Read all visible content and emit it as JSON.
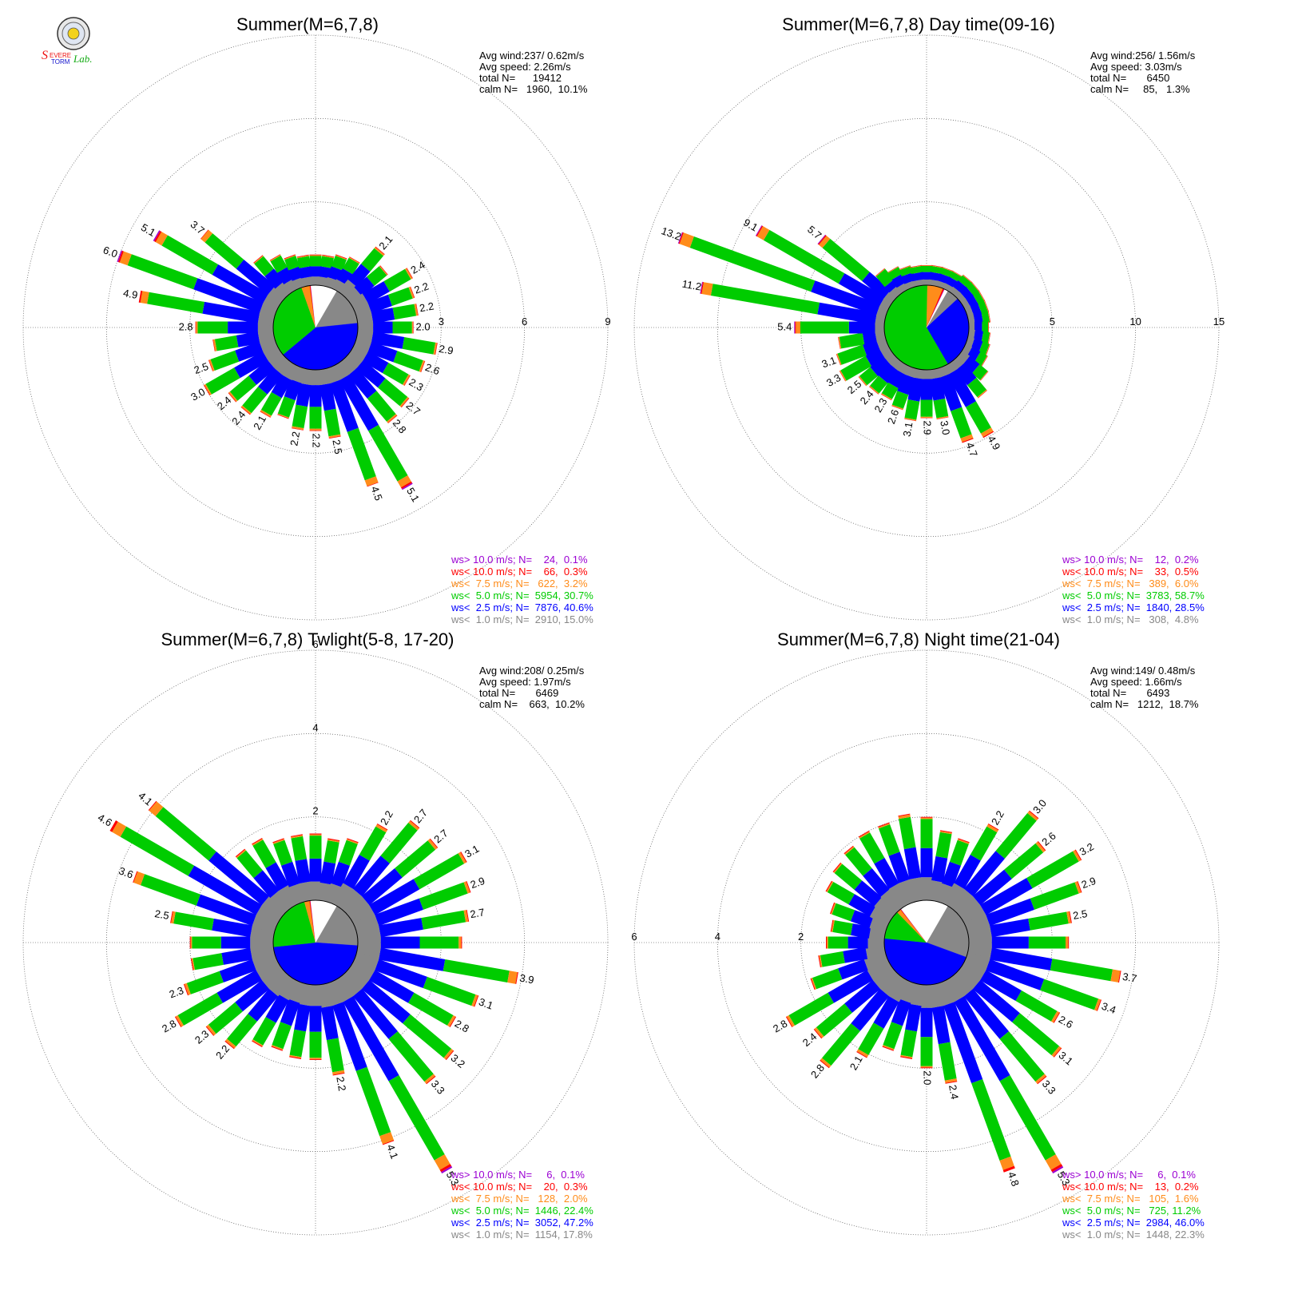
{
  "logo": {
    "text": "Severe Storm Lab."
  },
  "colors": {
    "ws_gt10": "#9b00d3",
    "ws_lt10": "#ff0000",
    "ws_lt7_5": "#ff8c1a",
    "ws_lt5": "#00cc00",
    "ws_lt2_5": "#0000ff",
    "ws_lt1": "#888888",
    "calm": "#ffffff"
  },
  "chart_data": [
    {
      "type": "wind_rose",
      "title": "Summer(M=6,7,8)",
      "stats": [
        "Avg wind:237/ 0.62m/s",
        "Avg speed: 2.26m/s",
        "total N=      19412",
        "calm N=   1960,  10.1%"
      ],
      "ring_values": [
        3,
        6,
        9
      ],
      "ring_labels": [
        "3",
        "6",
        "9"
      ],
      "ring_label_side": "right",
      "center_pie": [
        15.0,
        40.6,
        30.7,
        3.2,
        0.3,
        0.1,
        10.1
      ],
      "spokes": [
        {
          "dir": 0,
          "total": 1.1,
          "label": ""
        },
        {
          "dir": 10,
          "total": 1.1,
          "label": ""
        },
        {
          "dir": 20,
          "total": 1.2,
          "label": ""
        },
        {
          "dir": 30,
          "total": 1.3,
          "label": ""
        },
        {
          "dir": 40,
          "total": 2.1,
          "label": "2.1"
        },
        {
          "dir": 50,
          "total": 1.7,
          "label": ""
        },
        {
          "dir": 60,
          "total": 2.4,
          "label": "2.4"
        },
        {
          "dir": 70,
          "total": 2.2,
          "label": "2.2"
        },
        {
          "dir": 80,
          "total": 2.2,
          "label": "2.2"
        },
        {
          "dir": 90,
          "total": 2.0,
          "label": "2.0"
        },
        {
          "dir": 100,
          "total": 2.9,
          "label": "2.9"
        },
        {
          "dir": 110,
          "total": 2.6,
          "label": "2.6"
        },
        {
          "dir": 120,
          "total": 2.3,
          "label": "2.3"
        },
        {
          "dir": 130,
          "total": 2.7,
          "label": "2.7"
        },
        {
          "dir": 140,
          "total": 2.8,
          "label": "2.8"
        },
        {
          "dir": 150,
          "total": 5.1,
          "label": "5.1"
        },
        {
          "dir": 160,
          "total": 4.5,
          "label": "4.5"
        },
        {
          "dir": 170,
          "total": 2.5,
          "label": "2.5"
        },
        {
          "dir": 180,
          "total": 2.2,
          "label": "2.2"
        },
        {
          "dir": 190,
          "total": 2.2,
          "label": "2.2"
        },
        {
          "dir": 200,
          "total": 1.9,
          "label": ""
        },
        {
          "dir": 210,
          "total": 2.1,
          "label": "2.1"
        },
        {
          "dir": 220,
          "total": 2.4,
          "label": "2.4"
        },
        {
          "dir": 230,
          "total": 2.4,
          "label": "2.4"
        },
        {
          "dir": 240,
          "total": 3.0,
          "label": "3.0"
        },
        {
          "dir": 250,
          "total": 2.5,
          "label": "2.5"
        },
        {
          "dir": 260,
          "total": 2.2,
          "label": ""
        },
        {
          "dir": 270,
          "total": 2.8,
          "label": "2.8"
        },
        {
          "dir": 280,
          "total": 4.9,
          "label": "4.9"
        },
        {
          "dir": 290,
          "total": 6.0,
          "label": "6.0"
        },
        {
          "dir": 300,
          "total": 5.1,
          "label": "5.1"
        },
        {
          "dir": 310,
          "total": 3.7,
          "label": "3.7"
        },
        {
          "dir": 320,
          "total": 1.7,
          "label": ""
        },
        {
          "dir": 330,
          "total": 1.4,
          "label": ""
        },
        {
          "dir": 340,
          "total": 1.2,
          "label": ""
        },
        {
          "dir": 350,
          "total": 1.1,
          "label": ""
        }
      ],
      "legend": [
        "ws> 10.0 m/s; N=    24,  0.1%",
        "ws< 10.0 m/s; N=    66,  0.3%",
        "ws<  7.5 m/s; N=   622,  3.2%",
        "ws<  5.0 m/s; N=  5954, 30.7%",
        "ws<  2.5 m/s; N=  7876, 40.6%",
        "ws<  1.0 m/s; N=  2910, 15.0%"
      ]
    },
    {
      "type": "wind_rose",
      "title": "Summer(M=6,7,8) Day time(09-16)",
      "stats": [
        "Avg wind:256/ 1.56m/s",
        "Avg speed: 3.03m/s",
        "total N=       6450",
        "calm N=     85,   1.3%"
      ],
      "ring_values": [
        5,
        10,
        15
      ],
      "ring_labels": [
        "5",
        "10",
        "15"
      ],
      "ring_label_side": "right",
      "center_pie": [
        4.8,
        28.5,
        58.7,
        6.0,
        0.5,
        0.2,
        1.3
      ],
      "spokes": [
        {
          "dir": 0,
          "total": 1.2,
          "label": ""
        },
        {
          "dir": 10,
          "total": 1.2,
          "label": ""
        },
        {
          "dir": 20,
          "total": 1.2,
          "label": ""
        },
        {
          "dir": 30,
          "total": 1.2,
          "label": ""
        },
        {
          "dir": 40,
          "total": 1.3,
          "label": ""
        },
        {
          "dir": 50,
          "total": 1.3,
          "label": ""
        },
        {
          "dir": 60,
          "total": 1.3,
          "label": ""
        },
        {
          "dir": 70,
          "total": 1.3,
          "label": ""
        },
        {
          "dir": 80,
          "total": 1.3,
          "label": ""
        },
        {
          "dir": 90,
          "total": 1.2,
          "label": ""
        },
        {
          "dir": 100,
          "total": 1.3,
          "label": ""
        },
        {
          "dir": 110,
          "total": 1.4,
          "label": ""
        },
        {
          "dir": 120,
          "total": 1.5,
          "label": ""
        },
        {
          "dir": 130,
          "total": 2.0,
          "label": ""
        },
        {
          "dir": 140,
          "total": 2.7,
          "label": ""
        },
        {
          "dir": 150,
          "total": 4.9,
          "label": "4.9"
        },
        {
          "dir": 160,
          "total": 4.7,
          "label": "4.7"
        },
        {
          "dir": 170,
          "total": 3.0,
          "label": "3.0"
        },
        {
          "dir": 180,
          "total": 2.9,
          "label": "2.9"
        },
        {
          "dir": 190,
          "total": 3.1,
          "label": "3.1"
        },
        {
          "dir": 200,
          "total": 2.6,
          "label": "2.6"
        },
        {
          "dir": 210,
          "total": 2.3,
          "label": "2.3"
        },
        {
          "dir": 220,
          "total": 2.4,
          "label": "2.4"
        },
        {
          "dir": 230,
          "total": 2.5,
          "label": "2.5"
        },
        {
          "dir": 240,
          "total": 3.3,
          "label": "3.3"
        },
        {
          "dir": 250,
          "total": 3.1,
          "label": "3.1"
        },
        {
          "dir": 260,
          "total": 2.8,
          "label": ""
        },
        {
          "dir": 270,
          "total": 5.4,
          "label": "5.4"
        },
        {
          "dir": 280,
          "total": 11.2,
          "label": "11.2"
        },
        {
          "dir": 290,
          "total": 13.2,
          "label": "13.2"
        },
        {
          "dir": 300,
          "total": 9.1,
          "label": "9.1"
        },
        {
          "dir": 310,
          "total": 5.7,
          "label": "5.7"
        },
        {
          "dir": 320,
          "total": 1.8,
          "label": ""
        },
        {
          "dir": 330,
          "total": 1.5,
          "label": ""
        },
        {
          "dir": 340,
          "total": 1.3,
          "label": ""
        },
        {
          "dir": 350,
          "total": 1.2,
          "label": ""
        }
      ],
      "legend": [
        "ws> 10.0 m/s; N=    12,  0.2%",
        "ws< 10.0 m/s; N=    33,  0.5%",
        "ws<  7.5 m/s; N=   389,  6.0%",
        "ws<  5.0 m/s; N=  3783, 58.7%",
        "ws<  2.5 m/s; N=  1840, 28.5%",
        "ws<  1.0 m/s; N=   308,  4.8%"
      ]
    },
    {
      "type": "wind_rose",
      "title": "Summer(M=6,7,8) Twlight(5-8, 17-20)",
      "stats": [
        "Avg wind:208/ 0.25m/s",
        "Avg speed: 1.97m/s",
        "total N=       6469",
        "calm N=    663,  10.2%"
      ],
      "ring_values": [
        2,
        4,
        6
      ],
      "ring_labels": [
        "2",
        "4",
        "6"
      ],
      "ring_label_side": "top",
      "center_pie": [
        17.8,
        47.2,
        22.4,
        2.0,
        0.3,
        0.1,
        10.2
      ],
      "spokes": [
        {
          "dir": 0,
          "total": 1.6,
          "label": ""
        },
        {
          "dir": 10,
          "total": 1.5,
          "label": ""
        },
        {
          "dir": 20,
          "total": 1.6,
          "label": ""
        },
        {
          "dir": 30,
          "total": 2.2,
          "label": "2.2"
        },
        {
          "dir": 40,
          "total": 2.7,
          "label": "2.7"
        },
        {
          "dir": 50,
          "total": 2.7,
          "label": "2.7"
        },
        {
          "dir": 60,
          "total": 3.1,
          "label": "3.1"
        },
        {
          "dir": 70,
          "total": 2.9,
          "label": "2.9"
        },
        {
          "dir": 80,
          "total": 2.7,
          "label": "2.7"
        },
        {
          "dir": 90,
          "total": 2.5,
          "label": ""
        },
        {
          "dir": 100,
          "total": 3.9,
          "label": "3.9"
        },
        {
          "dir": 110,
          "total": 3.1,
          "label": "3.1"
        },
        {
          "dir": 120,
          "total": 2.8,
          "label": "2.8"
        },
        {
          "dir": 130,
          "total": 3.2,
          "label": "3.2"
        },
        {
          "dir": 140,
          "total": 3.3,
          "label": "3.3"
        },
        {
          "dir": 150,
          "total": 5.3,
          "label": "5.3"
        },
        {
          "dir": 160,
          "total": 4.1,
          "label": "4.1"
        },
        {
          "dir": 170,
          "total": 2.2,
          "label": "2.2"
        },
        {
          "dir": 180,
          "total": 1.8,
          "label": ""
        },
        {
          "dir": 190,
          "total": 1.8,
          "label": ""
        },
        {
          "dir": 200,
          "total": 1.7,
          "label": ""
        },
        {
          "dir": 210,
          "total": 1.8,
          "label": ""
        },
        {
          "dir": 220,
          "total": 2.2,
          "label": "2.2"
        },
        {
          "dir": 230,
          "total": 2.3,
          "label": "2.3"
        },
        {
          "dir": 240,
          "total": 2.8,
          "label": "2.8"
        },
        {
          "dir": 250,
          "total": 2.3,
          "label": "2.3"
        },
        {
          "dir": 260,
          "total": 2.0,
          "label": ""
        },
        {
          "dir": 270,
          "total": 2.0,
          "label": ""
        },
        {
          "dir": 280,
          "total": 2.5,
          "label": "2.5"
        },
        {
          "dir": 290,
          "total": 3.6,
          "label": "3.6"
        },
        {
          "dir": 300,
          "total": 4.6,
          "label": "4.6"
        },
        {
          "dir": 310,
          "total": 4.1,
          "label": "4.1"
        },
        {
          "dir": 320,
          "total": 1.8,
          "label": ""
        },
        {
          "dir": 330,
          "total": 1.8,
          "label": ""
        },
        {
          "dir": 340,
          "total": 1.6,
          "label": ""
        },
        {
          "dir": 350,
          "total": 1.6,
          "label": ""
        }
      ],
      "legend": [
        "ws> 10.0 m/s; N=     6,  0.1%",
        "ws< 10.0 m/s; N=    20,  0.3%",
        "ws<  7.5 m/s; N=   128,  2.0%",
        "ws<  5.0 m/s; N=  1446, 22.4%",
        "ws<  2.5 m/s; N=  3052, 47.2%",
        "ws<  1.0 m/s; N=  1154, 17.8%"
      ]
    },
    {
      "type": "wind_rose",
      "title": "Summer(M=6,7,8) Night time(21-04)",
      "stats": [
        "Avg wind:149/ 0.48m/s",
        "Avg speed: 1.66m/s",
        "total N=       6493",
        "calm N=   1212,  18.7%"
      ],
      "ring_values": [
        2,
        4,
        6
      ],
      "ring_labels": [
        "2",
        "4",
        "6"
      ],
      "ring_label_side": "left",
      "center_pie": [
        22.3,
        46.0,
        11.2,
        1.6,
        0.2,
        0.1,
        18.7
      ],
      "spokes": [
        {
          "dir": 0,
          "total": 2.0,
          "label": ""
        },
        {
          "dir": 10,
          "total": 1.7,
          "label": ""
        },
        {
          "dir": 20,
          "total": 1.6,
          "label": ""
        },
        {
          "dir": 30,
          "total": 2.2,
          "label": "2.2"
        },
        {
          "dir": 40,
          "total": 3.0,
          "label": "3.0"
        },
        {
          "dir": 50,
          "total": 2.6,
          "label": "2.6"
        },
        {
          "dir": 60,
          "total": 3.2,
          "label": "3.2"
        },
        {
          "dir": 70,
          "total": 2.9,
          "label": "2.9"
        },
        {
          "dir": 80,
          "total": 2.5,
          "label": "2.5"
        },
        {
          "dir": 90,
          "total": 2.4,
          "label": ""
        },
        {
          "dir": 100,
          "total": 3.7,
          "label": "3.7"
        },
        {
          "dir": 110,
          "total": 3.4,
          "label": "3.4"
        },
        {
          "dir": 120,
          "total": 2.6,
          "label": "2.6"
        },
        {
          "dir": 130,
          "total": 3.1,
          "label": "3.1"
        },
        {
          "dir": 140,
          "total": 3.3,
          "label": "3.3"
        },
        {
          "dir": 150,
          "total": 5.3,
          "label": "5.3"
        },
        {
          "dir": 160,
          "total": 4.8,
          "label": "4.8"
        },
        {
          "dir": 170,
          "total": 2.4,
          "label": "2.4"
        },
        {
          "dir": 180,
          "total": 2.0,
          "label": "2.0"
        },
        {
          "dir": 190,
          "total": 1.8,
          "label": ""
        },
        {
          "dir": 200,
          "total": 1.7,
          "label": ""
        },
        {
          "dir": 210,
          "total": 2.1,
          "label": "2.1"
        },
        {
          "dir": 220,
          "total": 2.8,
          "label": "2.8"
        },
        {
          "dir": 230,
          "total": 2.4,
          "label": "2.4"
        },
        {
          "dir": 240,
          "total": 2.8,
          "label": "2.8"
        },
        {
          "dir": 250,
          "total": 1.9,
          "label": ""
        },
        {
          "dir": 260,
          "total": 1.6,
          "label": ""
        },
        {
          "dir": 270,
          "total": 1.4,
          "label": ""
        },
        {
          "dir": 280,
          "total": 1.3,
          "label": ""
        },
        {
          "dir": 290,
          "total": 1.4,
          "label": ""
        },
        {
          "dir": 300,
          "total": 1.7,
          "label": ""
        },
        {
          "dir": 310,
          "total": 1.8,
          "label": ""
        },
        {
          "dir": 320,
          "total": 1.9,
          "label": ""
        },
        {
          "dir": 330,
          "total": 2.0,
          "label": ""
        },
        {
          "dir": 340,
          "total": 2.0,
          "label": ""
        },
        {
          "dir": 350,
          "total": 2.1,
          "label": ""
        }
      ],
      "legend": [
        "ws> 10.0 m/s; N=     6,  0.1%",
        "ws< 10.0 m/s; N=    13,  0.2%",
        "ws<  7.5 m/s; N=   105,  1.6%",
        "ws<  5.0 m/s; N=   725, 11.2%",
        "ws<  2.5 m/s; N=  2984, 46.0%",
        "ws<  1.0 m/s; N=  1448, 22.3%"
      ]
    }
  ]
}
